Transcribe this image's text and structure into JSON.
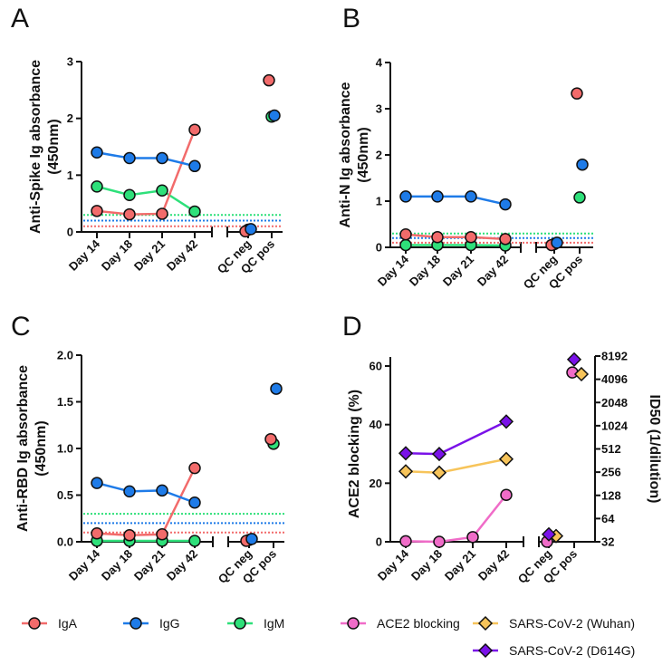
{
  "colors": {
    "IgA": "#f26b6b",
    "IgG": "#1e7be8",
    "IgM": "#2ee07a",
    "ACE2 blocking": "#f06cc8",
    "SARS-CoV-2 (Wuhan)": "#f7c45a",
    "SARS-CoV-2 (D614G)": "#7a12e8"
  },
  "legend": [
    {
      "label": "IgA",
      "marker": "circle"
    },
    {
      "label": "IgG",
      "marker": "circle"
    },
    {
      "label": "IgM",
      "marker": "circle"
    },
    {
      "label": "ACE2 blocking",
      "marker": "circle"
    },
    {
      "label": "SARS-CoV-2 (Wuhan)",
      "marker": "diamond"
    },
    {
      "label": "SARS-CoV-2 (D614G)",
      "marker": "diamond"
    }
  ],
  "chart_data": [
    {
      "panel": "A",
      "type": "line",
      "ylabel": [
        "Anti-Spike Ig absorbance",
        "(450nm)"
      ],
      "ylim": [
        0,
        3
      ],
      "yticks": [
        "0",
        "1",
        "2",
        "3"
      ],
      "categories": [
        "Day 14",
        "Day 18",
        "Day 21",
        "Day 42",
        "QC neg",
        "QC pos"
      ],
      "series": [
        {
          "name": "IgA",
          "values": [
            0.37,
            0.31,
            0.32,
            1.8,
            0.01,
            2.67
          ],
          "cutoff": 0.1
        },
        {
          "name": "IgG",
          "values": [
            1.4,
            1.3,
            1.3,
            1.16,
            0.05,
            2.05
          ],
          "cutoff": 0.2
        },
        {
          "name": "IgM",
          "values": [
            0.8,
            0.65,
            0.73,
            0.36,
            0.04,
            2.03
          ],
          "cutoff": 0.3
        }
      ]
    },
    {
      "panel": "B",
      "type": "line",
      "ylabel": [
        "Anti-N Ig absorbance",
        "(450nm)"
      ],
      "ylim": [
        0,
        4
      ],
      "yticks": [
        "0",
        "1",
        "2",
        "3",
        "4"
      ],
      "categories": [
        "Day 14",
        "Day 18",
        "Day 21",
        "Day 42",
        "QC neg",
        "QC pos"
      ],
      "series": [
        {
          "name": "IgA",
          "values": [
            0.28,
            0.22,
            0.22,
            0.18,
            0.05,
            3.33
          ],
          "cutoff": 0.1
        },
        {
          "name": "IgG",
          "values": [
            1.1,
            1.1,
            1.1,
            0.93,
            0.1,
            1.79
          ],
          "cutoff": 0.2
        },
        {
          "name": "IgM",
          "values": [
            0.05,
            0.05,
            0.05,
            0.04,
            0.07,
            1.08
          ],
          "cutoff": 0.3
        }
      ]
    },
    {
      "panel": "C",
      "type": "line",
      "ylabel": [
        "Anti-RBD Ig absorbance",
        "(450nm)"
      ],
      "ylim": [
        0,
        2
      ],
      "yticks": [
        "0.0",
        "0.5",
        "1.0",
        "1.5",
        "2.0"
      ],
      "categories": [
        "Day 14",
        "Day 18",
        "Day 21",
        "Day 42",
        "QC neg",
        "QC pos"
      ],
      "series": [
        {
          "name": "IgA",
          "values": [
            0.09,
            0.07,
            0.08,
            0.79,
            0.01,
            1.1
          ],
          "cutoff": 0.1
        },
        {
          "name": "IgG",
          "values": [
            0.63,
            0.54,
            0.55,
            0.42,
            0.03,
            1.64
          ],
          "cutoff": 0.2
        },
        {
          "name": "IgM",
          "values": [
            0.01,
            0.01,
            0.01,
            0.01,
            0.02,
            1.05
          ],
          "cutoff": 0.3
        }
      ]
    },
    {
      "panel": "D",
      "type": "line",
      "ylabel": [
        "ACE2 blocking (%)"
      ],
      "ylim": [
        0,
        65
      ],
      "yticks": [
        "0",
        "20",
        "40",
        "60"
      ],
      "y2label": "ID50 (1/dilution)",
      "y2lim": [
        32,
        8192
      ],
      "y2scale": "log2",
      "y2ticks": [
        "32",
        "64",
        "128",
        "256",
        "512",
        "1024",
        "2048",
        "4096",
        "8192"
      ],
      "categories": [
        "Day 14",
        "Day 18",
        "Day 21",
        "Day 42",
        "QC neg",
        "QC pos"
      ],
      "series": [
        {
          "name": "ACE2 blocking",
          "axis": "left",
          "values": [
            0.2,
            0,
            1.6,
            16,
            0,
            57.8
          ]
        },
        {
          "name": "SARS-CoV-2 (Wuhan)",
          "axis": "right",
          "values": [
            262,
            252,
            null,
            378,
            38,
            4770
          ]
        },
        {
          "name": "SARS-CoV-2 (D614G)",
          "axis": "right",
          "values": [
            450,
            440,
            null,
            1160,
            40,
            7400
          ]
        }
      ]
    }
  ]
}
